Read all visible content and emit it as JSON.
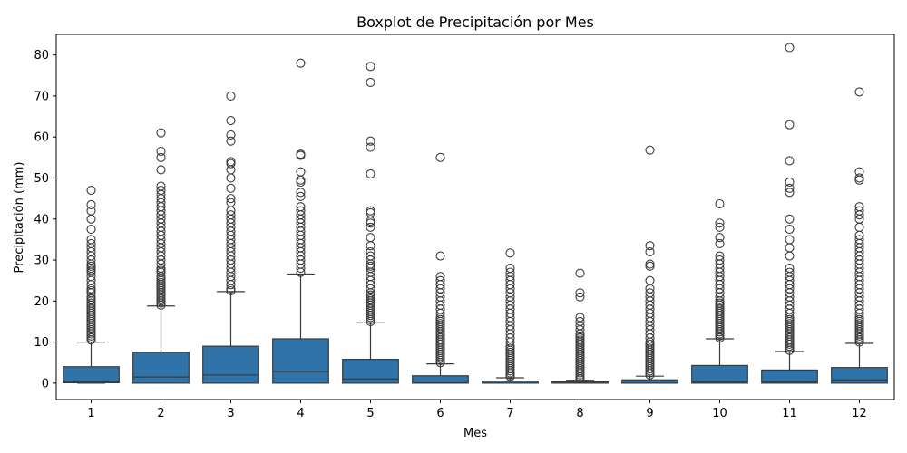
{
  "chart_data": {
    "type": "boxplot",
    "title": "Boxplot de Precipitación por Mes",
    "xlabel": "Mes",
    "ylabel": "Precipitación (mm)",
    "ylim": [
      -4,
      85
    ],
    "yticks": [
      0,
      10,
      20,
      30,
      40,
      50,
      60,
      70,
      80
    ],
    "grid": false,
    "legend": "none",
    "colors": {
      "box": "#2f73a8",
      "line": "#3a3a3a",
      "outlier": "#3a3a3a"
    },
    "categories": [
      "1",
      "2",
      "3",
      "4",
      "5",
      "6",
      "7",
      "8",
      "9",
      "10",
      "11",
      "12"
    ],
    "boxes": [
      {
        "month": "1",
        "min": 0,
        "q1": 0.1,
        "median": 0.3,
        "q3": 4.0,
        "whisker_high": 10.0,
        "outliers": [
          10.5,
          11,
          11.5,
          12,
          12.5,
          13,
          13.5,
          14,
          14.5,
          15,
          15.5,
          16,
          16.5,
          17,
          17.5,
          18,
          18.5,
          19,
          19.5,
          20,
          20.5,
          21,
          22,
          22.5,
          23,
          24,
          25,
          26,
          27,
          27.5,
          28,
          28.5,
          29,
          30,
          31,
          32,
          33,
          34,
          35,
          37.5,
          40,
          42,
          43.5,
          47
        ]
      },
      {
        "month": "2",
        "min": 0,
        "q1": 0,
        "median": 1.5,
        "q3": 7.5,
        "whisker_high": 18.8,
        "outliers": [
          19,
          19.5,
          20,
          20.5,
          21,
          21.5,
          22,
          22.5,
          23,
          23.5,
          24,
          24.5,
          25,
          25.5,
          26,
          27,
          27.5,
          28,
          29,
          30,
          31,
          32,
          33,
          34,
          35,
          36,
          37,
          38,
          39,
          40,
          41,
          42,
          43,
          44,
          45,
          46,
          47,
          48,
          52,
          55,
          56.5,
          61
        ]
      },
      {
        "month": "3",
        "min": 0,
        "q1": 0,
        "median": 2.0,
        "q3": 9.0,
        "whisker_high": 22.3,
        "outliers": [
          22.5,
          23,
          24,
          25,
          26,
          27,
          28,
          29,
          30,
          31,
          32,
          33,
          34,
          35,
          36,
          37,
          38,
          39,
          40,
          41,
          42,
          44,
          45,
          47.5,
          50,
          52,
          53.5,
          54,
          59,
          60.5,
          64,
          70
        ]
      },
      {
        "month": "4",
        "min": 0,
        "q1": 0,
        "median": 2.8,
        "q3": 10.8,
        "whisker_high": 26.6,
        "outliers": [
          27,
          28,
          29,
          30,
          31,
          32,
          33,
          34,
          35,
          36,
          37,
          38,
          39,
          40,
          41,
          42,
          43,
          45.5,
          46.5,
          49,
          49.5,
          51.5,
          55.5,
          55.8,
          78
        ]
      },
      {
        "month": "5",
        "min": 0,
        "q1": 0,
        "median": 1.0,
        "q3": 5.8,
        "whisker_high": 14.7,
        "outliers": [
          15,
          15.5,
          16,
          16.5,
          17,
          17.5,
          18,
          18.5,
          19,
          19.5,
          20,
          20.5,
          21,
          21.5,
          22,
          23,
          24,
          25,
          26,
          27,
          28,
          28.5,
          29,
          30,
          31,
          32,
          33.5,
          35.5,
          38,
          39,
          39.5,
          41.5,
          42,
          51,
          57.5,
          59,
          73.3,
          77.2
        ]
      },
      {
        "month": "6",
        "min": 0,
        "q1": 0,
        "median": 0.1,
        "q3": 1.8,
        "whisker_high": 4.7,
        "outliers": [
          5,
          5.5,
          6,
          6.5,
          7,
          7.5,
          8,
          8.5,
          9,
          9.5,
          10,
          10.5,
          11,
          11.5,
          12,
          12.5,
          13,
          13.5,
          14,
          14.5,
          15,
          15.5,
          16,
          17,
          18,
          19,
          20,
          21,
          22,
          23,
          24,
          25,
          26,
          31,
          55
        ]
      },
      {
        "month": "7",
        "min": 0,
        "q1": 0,
        "median": 0,
        "q3": 0.5,
        "whisker_high": 1.3,
        "outliers": [
          1.6,
          2,
          2.5,
          3,
          3.5,
          4,
          4.5,
          5,
          5.5,
          6,
          6.5,
          7,
          7.5,
          8,
          8.5,
          9,
          10,
          11,
          12,
          13,
          14,
          15,
          16,
          17,
          18,
          19,
          20,
          21,
          22,
          23,
          24,
          25,
          26,
          27,
          28,
          31.7
        ]
      },
      {
        "month": "8",
        "min": 0,
        "q1": 0,
        "median": 0,
        "q3": 0.3,
        "whisker_high": 0.7,
        "outliers": [
          1,
          1.5,
          2,
          2.5,
          3,
          3.5,
          4,
          4.5,
          5,
          5.5,
          6,
          6.5,
          7,
          7.5,
          8,
          8.5,
          9,
          9.5,
          10,
          10.5,
          11,
          11.5,
          12,
          13,
          14,
          15,
          16,
          21,
          22,
          26.8
        ]
      },
      {
        "month": "9",
        "min": 0,
        "q1": 0,
        "median": 0,
        "q3": 0.8,
        "whisker_high": 1.7,
        "outliers": [
          2,
          2.5,
          3,
          3.5,
          4,
          4.5,
          5,
          5.5,
          6,
          6.5,
          7,
          7.5,
          8,
          8.5,
          9,
          9.5,
          10,
          11,
          12,
          13,
          14,
          15,
          16,
          17,
          18,
          19,
          20,
          21,
          22,
          23,
          25,
          28.5,
          29,
          32,
          33.5,
          56.8
        ]
      },
      {
        "month": "10",
        "min": 0,
        "q1": 0,
        "median": 0.3,
        "q3": 4.3,
        "whisker_high": 10.8,
        "outliers": [
          11,
          11.5,
          12,
          12.5,
          13,
          13.5,
          14,
          14.5,
          15,
          15.5,
          16,
          16.5,
          17,
          17.5,
          18,
          18.5,
          19,
          19.5,
          20,
          21,
          22,
          23,
          24,
          25,
          26,
          27,
          28,
          29,
          30,
          31,
          34,
          35.5,
          38,
          39,
          43.7
        ]
      },
      {
        "month": "11",
        "min": 0,
        "q1": 0,
        "median": 0.3,
        "q3": 3.2,
        "whisker_high": 7.7,
        "outliers": [
          8,
          8.5,
          9,
          9.5,
          10,
          10.5,
          11,
          11.5,
          12,
          12.5,
          13,
          13.5,
          14,
          14.5,
          15,
          15.5,
          16,
          17,
          18,
          19,
          20,
          21,
          22,
          23,
          24,
          25,
          26,
          27,
          28,
          31,
          33,
          35,
          37.5,
          40,
          46.5,
          47.5,
          49,
          54.2,
          63,
          81.8
        ]
      },
      {
        "month": "12",
        "min": 0,
        "q1": 0,
        "median": 0.8,
        "q3": 3.8,
        "whisker_high": 9.7,
        "outliers": [
          10,
          10.5,
          11,
          11.5,
          12,
          12.5,
          13,
          13.5,
          14,
          14.5,
          15,
          15.5,
          16,
          17,
          18,
          19,
          20,
          21,
          22,
          23,
          24,
          25,
          26,
          27,
          28,
          29,
          30,
          31,
          32,
          33,
          34,
          35,
          36,
          38,
          40,
          41,
          42,
          43,
          49.5,
          50,
          51.5,
          71
        ]
      }
    ]
  }
}
